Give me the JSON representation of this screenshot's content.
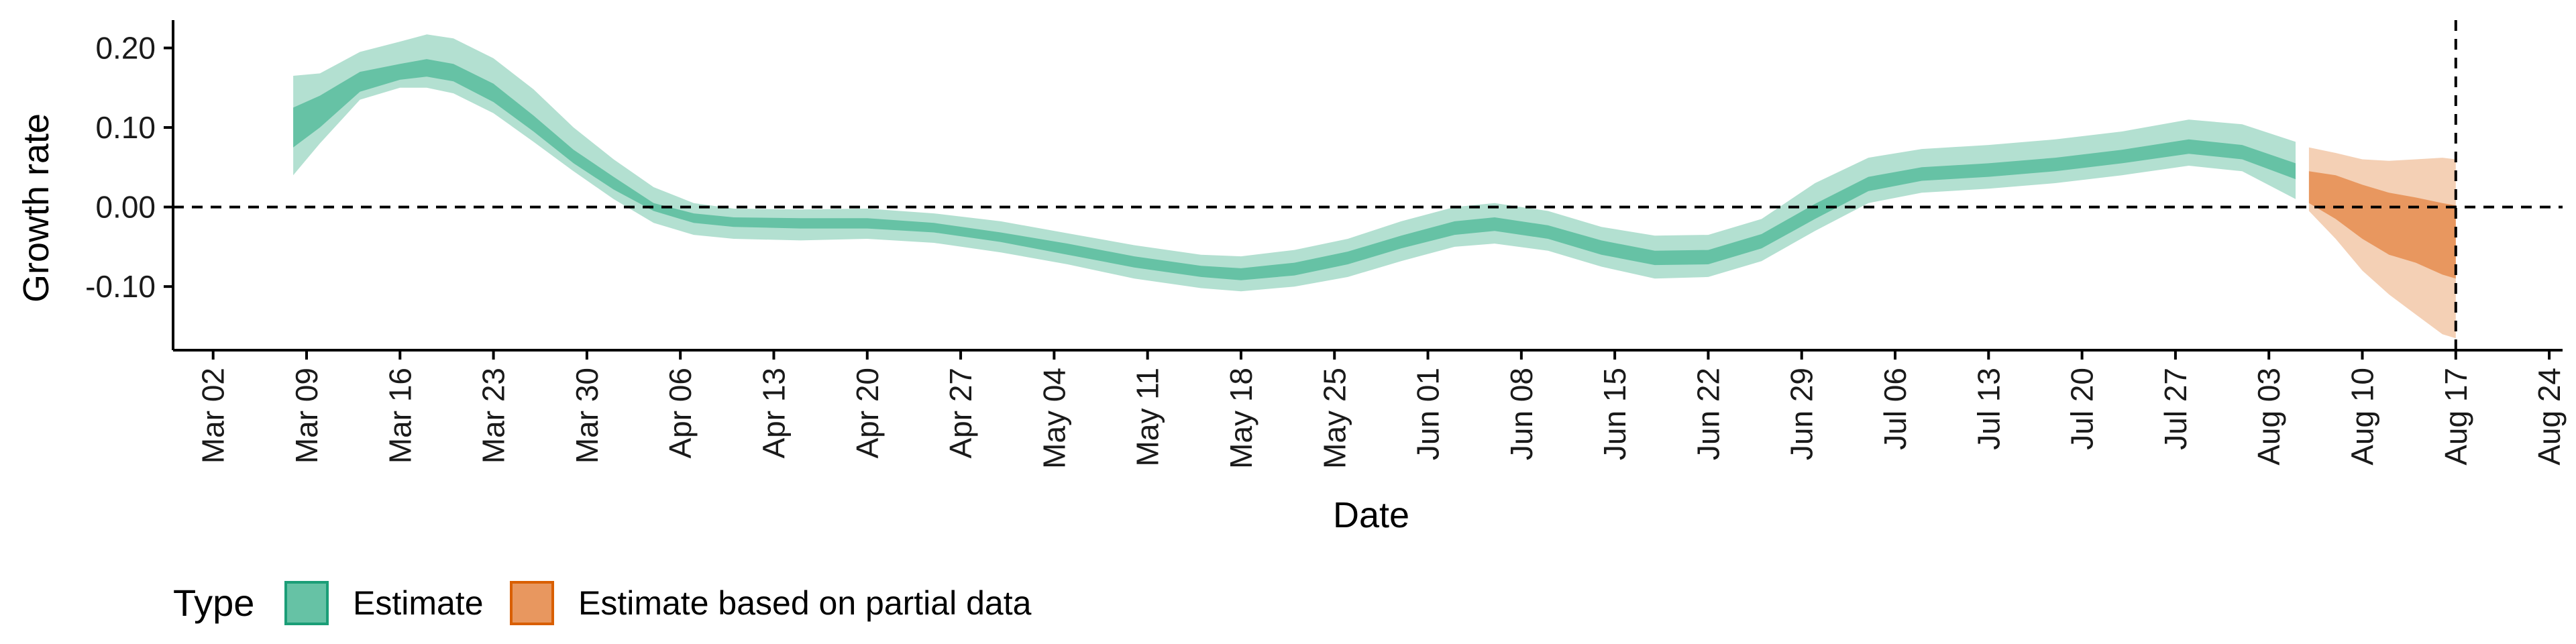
{
  "chart_data": {
    "type": "area",
    "xlabel": "Date",
    "ylabel": "Growth rate",
    "ylim": [
      -0.18,
      0.235
    ],
    "y_ticks": [
      {
        "value": 0.2,
        "label": "0.20"
      },
      {
        "value": 0.1,
        "label": "0.10"
      },
      {
        "value": 0.0,
        "label": "0.00"
      },
      {
        "value": -0.1,
        "label": "-0.10"
      }
    ],
    "x_ticks": [
      {
        "date": "2020-03-02",
        "label": "Mar 02"
      },
      {
        "date": "2020-03-09",
        "label": "Mar 09"
      },
      {
        "date": "2020-03-16",
        "label": "Mar 16"
      },
      {
        "date": "2020-03-23",
        "label": "Mar 23"
      },
      {
        "date": "2020-03-30",
        "label": "Mar 30"
      },
      {
        "date": "2020-04-06",
        "label": "Apr 06"
      },
      {
        "date": "2020-04-13",
        "label": "Apr 13"
      },
      {
        "date": "2020-04-20",
        "label": "Apr 20"
      },
      {
        "date": "2020-04-27",
        "label": "Apr 27"
      },
      {
        "date": "2020-05-04",
        "label": "May 04"
      },
      {
        "date": "2020-05-11",
        "label": "May 11"
      },
      {
        "date": "2020-05-18",
        "label": "May 18"
      },
      {
        "date": "2020-05-25",
        "label": "May 25"
      },
      {
        "date": "2020-06-01",
        "label": "Jun 01"
      },
      {
        "date": "2020-06-08",
        "label": "Jun 08"
      },
      {
        "date": "2020-06-15",
        "label": "Jun 15"
      },
      {
        "date": "2020-06-22",
        "label": "Jun 22"
      },
      {
        "date": "2020-06-29",
        "label": "Jun 29"
      },
      {
        "date": "2020-07-06",
        "label": "Jul 06"
      },
      {
        "date": "2020-07-13",
        "label": "Jul 13"
      },
      {
        "date": "2020-07-20",
        "label": "Jul 20"
      },
      {
        "date": "2020-07-27",
        "label": "Jul 27"
      },
      {
        "date": "2020-08-03",
        "label": "Aug 03"
      },
      {
        "date": "2020-08-10",
        "label": "Aug 10"
      },
      {
        "date": "2020-08-17",
        "label": "Aug 17"
      },
      {
        "date": "2020-08-24",
        "label": "Aug 24"
      }
    ],
    "xlim": [
      "2020-02-28",
      "2020-08-25"
    ],
    "reference_lines": {
      "horizontal_y": 0.0,
      "vertical_date": "2020-08-17",
      "style": "dashed"
    },
    "grid": false,
    "legend": {
      "title": "Type",
      "position": "bottom-left",
      "entries": [
        {
          "label": "Estimate",
          "fill": "#66c2a5",
          "border": "#1b9e77"
        },
        {
          "label": "Estimate based on partial data",
          "fill": "#e8975f",
          "border": "#d95f02"
        }
      ]
    },
    "series": [
      {
        "name": "Estimate",
        "colors": {
          "inner": "#66c2a5",
          "outer": "#b3e0d1"
        },
        "points": [
          {
            "date": "2020-03-08",
            "lower90": 0.04,
            "lower50": 0.075,
            "upper50": 0.125,
            "upper90": 0.165
          },
          {
            "date": "2020-03-10",
            "lower90": 0.08,
            "lower50": 0.1,
            "upper50": 0.14,
            "upper90": 0.168
          },
          {
            "date": "2020-03-13",
            "lower90": 0.135,
            "lower50": 0.145,
            "upper50": 0.17,
            "upper90": 0.195
          },
          {
            "date": "2020-03-16",
            "lower90": 0.15,
            "lower50": 0.16,
            "upper50": 0.18,
            "upper90": 0.208
          },
          {
            "date": "2020-03-18",
            "lower90": 0.15,
            "lower50": 0.164,
            "upper50": 0.186,
            "upper90": 0.217
          },
          {
            "date": "2020-03-20",
            "lower90": 0.143,
            "lower50": 0.158,
            "upper50": 0.18,
            "upper90": 0.212
          },
          {
            "date": "2020-03-23",
            "lower90": 0.118,
            "lower50": 0.132,
            "upper50": 0.155,
            "upper90": 0.187
          },
          {
            "date": "2020-03-26",
            "lower90": 0.082,
            "lower50": 0.095,
            "upper50": 0.115,
            "upper90": 0.148
          },
          {
            "date": "2020-03-29",
            "lower90": 0.045,
            "lower50": 0.055,
            "upper50": 0.072,
            "upper90": 0.1
          },
          {
            "date": "2020-04-01",
            "lower90": 0.01,
            "lower50": 0.022,
            "upper50": 0.038,
            "upper90": 0.06
          },
          {
            "date": "2020-04-04",
            "lower90": -0.02,
            "lower50": -0.005,
            "upper50": 0.005,
            "upper90": 0.025
          },
          {
            "date": "2020-04-07",
            "lower90": -0.035,
            "lower50": -0.02,
            "upper50": -0.008,
            "upper90": 0.005
          },
          {
            "date": "2020-04-10",
            "lower90": -0.04,
            "lower50": -0.025,
            "upper50": -0.013,
            "upper90": -0.002
          },
          {
            "date": "2020-04-15",
            "lower90": -0.042,
            "lower50": -0.027,
            "upper50": -0.014,
            "upper90": -0.003
          },
          {
            "date": "2020-04-20",
            "lower90": -0.04,
            "lower50": -0.027,
            "upper50": -0.014,
            "upper90": -0.002
          },
          {
            "date": "2020-04-25",
            "lower90": -0.045,
            "lower50": -0.032,
            "upper50": -0.02,
            "upper90": -0.008
          },
          {
            "date": "2020-04-30",
            "lower90": -0.057,
            "lower50": -0.044,
            "upper50": -0.032,
            "upper90": -0.018
          },
          {
            "date": "2020-05-05",
            "lower90": -0.072,
            "lower50": -0.06,
            "upper50": -0.046,
            "upper90": -0.033
          },
          {
            "date": "2020-05-10",
            "lower90": -0.09,
            "lower50": -0.076,
            "upper50": -0.062,
            "upper90": -0.048
          },
          {
            "date": "2020-05-15",
            "lower90": -0.102,
            "lower50": -0.088,
            "upper50": -0.074,
            "upper90": -0.06
          },
          {
            "date": "2020-05-18",
            "lower90": -0.106,
            "lower50": -0.092,
            "upper50": -0.077,
            "upper90": -0.062
          },
          {
            "date": "2020-05-22",
            "lower90": -0.1,
            "lower50": -0.086,
            "upper50": -0.07,
            "upper90": -0.054
          },
          {
            "date": "2020-05-26",
            "lower90": -0.088,
            "lower50": -0.072,
            "upper50": -0.056,
            "upper90": -0.04
          },
          {
            "date": "2020-05-30",
            "lower90": -0.068,
            "lower50": -0.052,
            "upper50": -0.036,
            "upper90": -0.018
          },
          {
            "date": "2020-06-03",
            "lower90": -0.05,
            "lower50": -0.035,
            "upper50": -0.018,
            "upper90": 0.0
          },
          {
            "date": "2020-06-06",
            "lower90": -0.046,
            "lower50": -0.03,
            "upper50": -0.013,
            "upper90": 0.005
          },
          {
            "date": "2020-06-10",
            "lower90": -0.055,
            "lower50": -0.04,
            "upper50": -0.023,
            "upper90": -0.005
          },
          {
            "date": "2020-06-14",
            "lower90": -0.075,
            "lower50": -0.06,
            "upper50": -0.042,
            "upper90": -0.025
          },
          {
            "date": "2020-06-18",
            "lower90": -0.09,
            "lower50": -0.073,
            "upper50": -0.055,
            "upper90": -0.036
          },
          {
            "date": "2020-06-22",
            "lower90": -0.088,
            "lower50": -0.072,
            "upper50": -0.054,
            "upper90": -0.035
          },
          {
            "date": "2020-06-26",
            "lower90": -0.068,
            "lower50": -0.052,
            "upper50": -0.034,
            "upper90": -0.015
          },
          {
            "date": "2020-06-30",
            "lower90": -0.03,
            "lower50": -0.015,
            "upper50": 0.004,
            "upper90": 0.03
          },
          {
            "date": "2020-07-04",
            "lower90": 0.005,
            "lower50": 0.02,
            "upper50": 0.038,
            "upper90": 0.062
          },
          {
            "date": "2020-07-08",
            "lower90": 0.018,
            "lower50": 0.033,
            "upper50": 0.05,
            "upper90": 0.073
          },
          {
            "date": "2020-07-13",
            "lower90": 0.023,
            "lower50": 0.038,
            "upper50": 0.055,
            "upper90": 0.078
          },
          {
            "date": "2020-07-18",
            "lower90": 0.03,
            "lower50": 0.045,
            "upper50": 0.062,
            "upper90": 0.085
          },
          {
            "date": "2020-07-23",
            "lower90": 0.04,
            "lower50": 0.055,
            "upper50": 0.072,
            "upper90": 0.095
          },
          {
            "date": "2020-07-28",
            "lower90": 0.052,
            "lower50": 0.067,
            "upper50": 0.085,
            "upper90": 0.11
          },
          {
            "date": "2020-08-01",
            "lower90": 0.045,
            "lower50": 0.06,
            "upper50": 0.078,
            "upper90": 0.104
          },
          {
            "date": "2020-08-05",
            "lower90": 0.01,
            "lower50": 0.035,
            "upper50": 0.055,
            "upper90": 0.082
          }
        ]
      },
      {
        "name": "Estimate based on partial data",
        "colors": {
          "inner": "#e8975f",
          "outer": "#f4d0b5"
        },
        "points": [
          {
            "date": "2020-08-06",
            "lower90": -0.005,
            "lower50": 0.005,
            "upper50": 0.045,
            "upper90": 0.075
          },
          {
            "date": "2020-08-08",
            "lower90": -0.04,
            "lower50": -0.015,
            "upper50": 0.04,
            "upper90": 0.068
          },
          {
            "date": "2020-08-10",
            "lower90": -0.08,
            "lower50": -0.04,
            "upper50": 0.028,
            "upper90": 0.06
          },
          {
            "date": "2020-08-12",
            "lower90": -0.11,
            "lower50": -0.06,
            "upper50": 0.018,
            "upper90": 0.058
          },
          {
            "date": "2020-08-14",
            "lower90": -0.135,
            "lower50": -0.07,
            "upper50": 0.012,
            "upper90": 0.06
          },
          {
            "date": "2020-08-16",
            "lower90": -0.16,
            "lower50": -0.085,
            "upper50": 0.005,
            "upper90": 0.062
          },
          {
            "date": "2020-08-17",
            "lower90": -0.165,
            "lower50": -0.09,
            "upper50": 0.002,
            "upper90": 0.06
          }
        ]
      }
    ]
  }
}
